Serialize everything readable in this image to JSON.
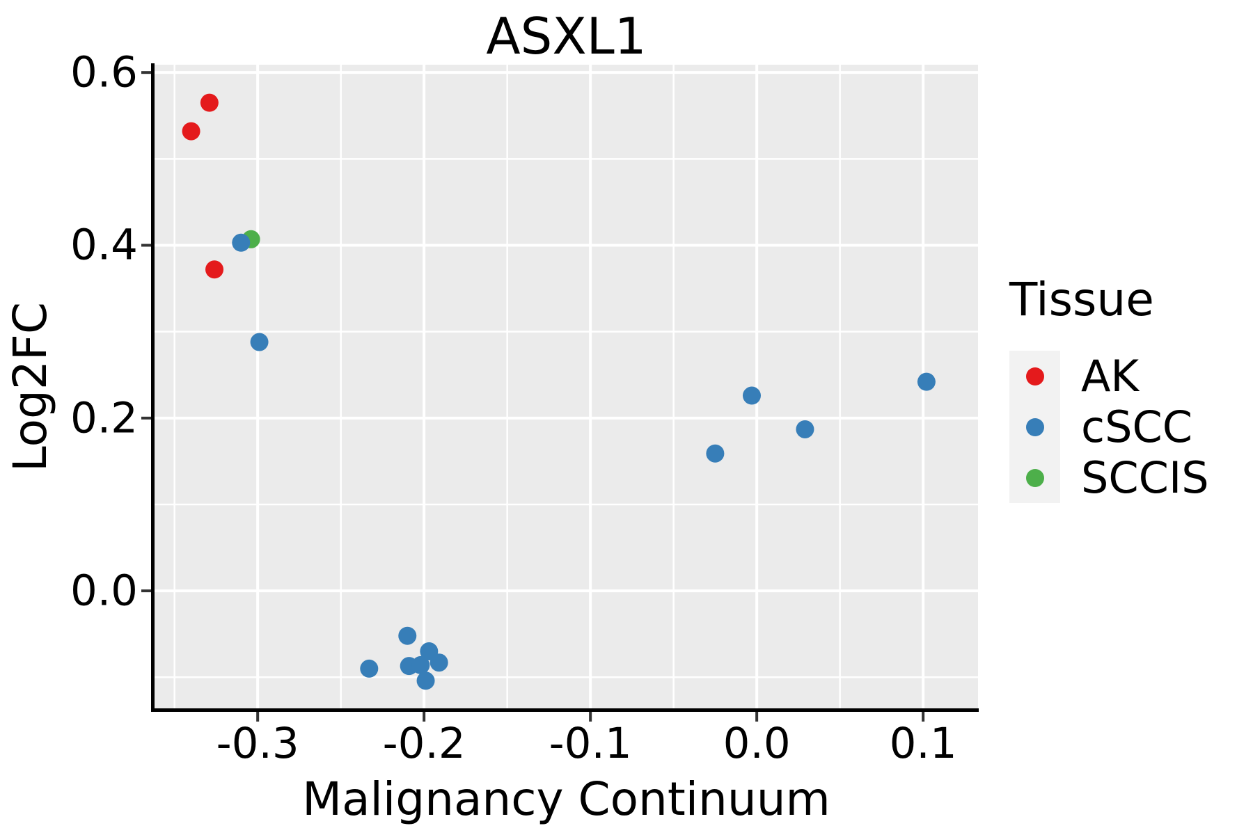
{
  "figure": {
    "title": "ASXL1"
  },
  "style": {
    "panel_background": "#EBEBEB",
    "grid_color": "#FFFFFF",
    "axis_line_color": "#000000",
    "tick_mark_color": "#333333",
    "text_color": "#000000",
    "legend_key_background": "#F2F2F2"
  },
  "chart_data": {
    "type": "scatter",
    "title": "ASXL1",
    "xlabel": "Malignancy Continuum",
    "ylabel": "Log2FC",
    "xlim": [
      -0.362,
      0.133
    ],
    "ylim": [
      -0.136,
      0.609
    ],
    "grid": {
      "major": true,
      "minor": true
    },
    "x_major_ticks": {
      "values": [
        -0.3,
        -0.2,
        -0.1,
        0.0,
        0.1
      ],
      "labels": [
        "-0.3",
        "-0.2",
        "-0.1",
        "0.0",
        "0.1"
      ]
    },
    "x_minor_ticks": [
      -0.35,
      -0.25,
      -0.15,
      -0.05,
      0.05
    ],
    "y_major_ticks": {
      "values": [
        0.0,
        0.2,
        0.4,
        0.6
      ],
      "labels": [
        "0.0",
        "0.2",
        "0.4",
        "0.6"
      ]
    },
    "y_minor_ticks": [
      -0.1,
      0.1,
      0.3,
      0.5
    ],
    "point_radius_px": 13,
    "legend": {
      "title": "Tissue",
      "position": "right",
      "entries": [
        {
          "label": "AK",
          "color": "#E41A1C"
        },
        {
          "label": "cSCC",
          "color": "#377EB8"
        },
        {
          "label": "SCCIS",
          "color": "#4DAF4A"
        }
      ]
    },
    "series": [
      {
        "name": "AK",
        "color": "#E41A1C",
        "points": [
          [
            -0.329,
            0.565
          ],
          [
            -0.34,
            0.532
          ],
          [
            -0.326,
            0.372
          ]
        ]
      },
      {
        "name": "SCCIS",
        "color": "#4DAF4A",
        "points": [
          [
            -0.304,
            0.407
          ]
        ]
      },
      {
        "name": "cSCC",
        "color": "#377EB8",
        "points": [
          [
            -0.31,
            0.403
          ],
          [
            -0.299,
            0.288
          ],
          [
            -0.233,
            -0.09
          ],
          [
            -0.21,
            -0.052
          ],
          [
            -0.209,
            -0.087
          ],
          [
            -0.202,
            -0.086
          ],
          [
            -0.197,
            -0.07
          ],
          [
            -0.191,
            -0.083
          ],
          [
            -0.199,
            -0.104
          ],
          [
            -0.025,
            0.159
          ],
          [
            -0.003,
            0.226
          ],
          [
            0.029,
            0.187
          ],
          [
            0.102,
            0.242
          ]
        ]
      }
    ]
  }
}
